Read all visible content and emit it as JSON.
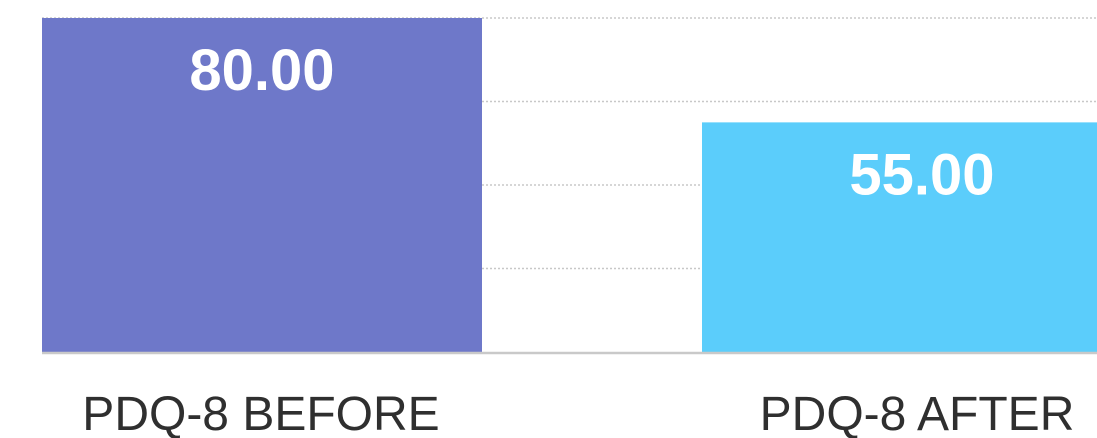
{
  "chart_data": {
    "type": "bar",
    "categories": [
      "PDQ-8 BEFORE",
      "PDQ-8 AFTER"
    ],
    "values": [
      80.0,
      55.0
    ],
    "value_labels": [
      "80.00",
      "55.00"
    ],
    "colors": [
      "#6e78c9",
      "#5bcdfb"
    ],
    "ylim": [
      0,
      80
    ],
    "grid": true,
    "title": "",
    "xlabel": "",
    "ylabel": ""
  }
}
